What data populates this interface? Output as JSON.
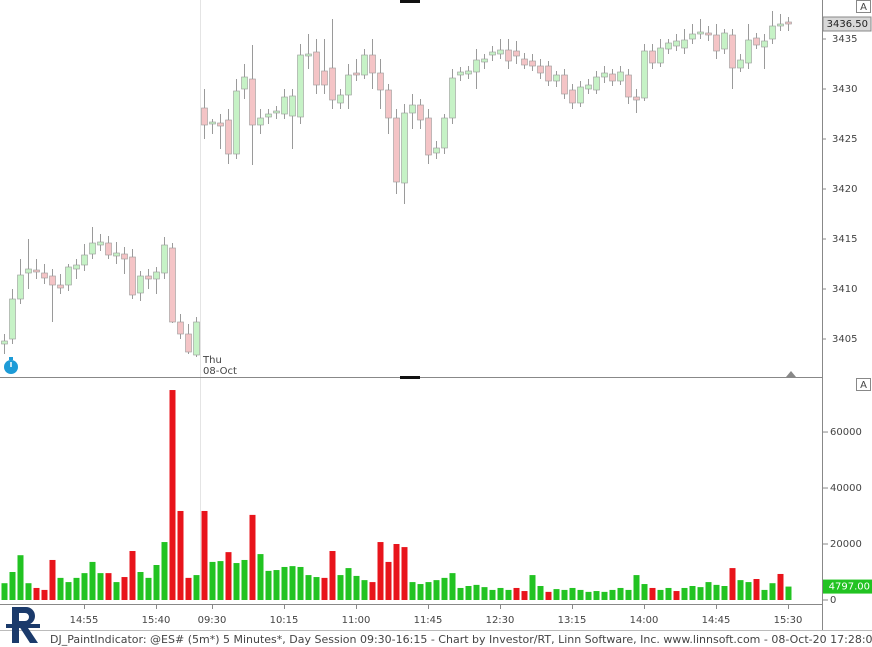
{
  "chart_data": [
    {
      "type": "candlestick",
      "open": [
        3404.5,
        3405,
        3409,
        3411.6,
        3411.9,
        3411.6,
        3411.3,
        3410.4,
        3410.4,
        3412,
        3412.4,
        3413.5,
        3414.4,
        3414.6,
        3413.3,
        3413.5,
        3413.2,
        3409.6,
        3411.3,
        3411,
        3411.6,
        3414.1,
        3406.7,
        3405.5,
        3403.4,
        3428.1,
        3426.5,
        3426.6,
        3426.9,
        3423.5,
        3430,
        3431,
        3426.4,
        3427.2,
        3427.6,
        3427.5,
        3427.3,
        3427.2,
        3433.3,
        3433.7,
        3431.8,
        3432.1,
        3428.6,
        3429.4,
        3431.6,
        3431.4,
        3433.4,
        3431.6,
        3429.9,
        3427.1,
        3420.6,
        3427.6,
        3428.4,
        3427.1,
        3423.6,
        3424.1,
        3427.1,
        3431.4,
        3431.5,
        3431.7,
        3432.7,
        3433.4,
        3433.5,
        3433.9,
        3433.8,
        3433,
        3432.8,
        3432.3,
        3432.3,
        3430.8,
        3431.4,
        3429.9,
        3428.6,
        3430,
        3429.9,
        3431.2,
        3431.5,
        3430.8,
        3431.4,
        3429.2,
        3429.1,
        3433.8,
        3432.6,
        3434,
        3434.3,
        3434.1,
        3435,
        3435.5,
        3435.6,
        3435.4,
        3434,
        3435.4,
        3432.1,
        3432.6,
        3435.1,
        3434.2,
        3435,
        3436.3,
        3436.7
      ],
      "high": [
        3405.5,
        3410,
        3413,
        3415,
        3413,
        3412.5,
        3412,
        3411.5,
        3412.5,
        3413,
        3414.5,
        3416.2,
        3415.5,
        3415.3,
        3414.7,
        3414.2,
        3414,
        3411.8,
        3412,
        3412.2,
        3415.2,
        3414.6,
        3407.5,
        3406.5,
        3407.2,
        3430,
        3427,
        3427.5,
        3428,
        3431,
        3432.5,
        3434.4,
        3428,
        3428,
        3428.3,
        3430,
        3430,
        3434.5,
        3435.5,
        3435,
        3435,
        3437,
        3430,
        3432.5,
        3433,
        3434,
        3435,
        3433,
        3430.5,
        3428,
        3428.5,
        3429.5,
        3429,
        3428,
        3424.8,
        3427.5,
        3432,
        3432.2,
        3432.3,
        3434,
        3433.5,
        3434.3,
        3435,
        3435,
        3434.8,
        3433.6,
        3433.5,
        3433,
        3432.8,
        3431.8,
        3432,
        3430.5,
        3430.8,
        3431,
        3431.8,
        3432.3,
        3432,
        3432.3,
        3432,
        3430,
        3434.5,
        3434.5,
        3435,
        3435,
        3435.5,
        3436,
        3436.5,
        3437,
        3436.3,
        3436.5,
        3436,
        3436,
        3433.5,
        3436.5,
        3435.6,
        3435.5,
        3437.8,
        3437.5,
        3437.2
      ],
      "low": [
        3403.5,
        3404.5,
        3408.5,
        3410,
        3411,
        3410.5,
        3406.7,
        3409.5,
        3409.8,
        3411,
        3411.8,
        3413,
        3413.8,
        3413,
        3412.5,
        3411.5,
        3409,
        3408.8,
        3410,
        3409.5,
        3411,
        3406.6,
        3405,
        3403.5,
        3403.2,
        3425,
        3425.5,
        3424,
        3422.5,
        3423,
        3429,
        3422.4,
        3425.5,
        3426.5,
        3427,
        3427,
        3424,
        3426.5,
        3432,
        3429.5,
        3429.5,
        3428,
        3428,
        3428,
        3430.8,
        3431,
        3430,
        3428,
        3425.5,
        3419.5,
        3418.5,
        3426,
        3426,
        3422.5,
        3423,
        3423.5,
        3426.5,
        3430.8,
        3431,
        3430,
        3432,
        3432.8,
        3433,
        3432,
        3432.5,
        3432,
        3431.8,
        3431,
        3430.3,
        3430.2,
        3429,
        3428,
        3428.2,
        3429.5,
        3429.5,
        3430.6,
        3430.3,
        3430.4,
        3428.5,
        3427.6,
        3428.8,
        3432,
        3432.2,
        3433.5,
        3433.8,
        3433.5,
        3434.5,
        3435,
        3434.8,
        3433,
        3433.5,
        3430,
        3431.7,
        3432,
        3434,
        3432,
        3434.5,
        3435.8,
        3435.8
      ],
      "close": [
        3404.8,
        3409,
        3411.4,
        3412,
        3411.7,
        3411.1,
        3410.4,
        3410.1,
        3412.2,
        3412.4,
        3413.4,
        3414.6,
        3414.7,
        3413.4,
        3413.6,
        3413,
        3409.4,
        3411.3,
        3411,
        3411.7,
        3414.4,
        3406.7,
        3405.5,
        3403.7,
        3406.7,
        3426.4,
        3426.7,
        3426.3,
        3423.5,
        3429.8,
        3431.2,
        3426.4,
        3427.1,
        3427.5,
        3427.8,
        3429.2,
        3429.3,
        3433.4,
        3433.5,
        3430.4,
        3430.4,
        3428.9,
        3429.4,
        3431.4,
        3431.4,
        3433.4,
        3431.6,
        3429.9,
        3427.1,
        3420.7,
        3427.6,
        3428.4,
        3426.9,
        3423.4,
        3424.1,
        3427.1,
        3431.1,
        3431.7,
        3431.8,
        3432.9,
        3433,
        3433.7,
        3433.9,
        3432.8,
        3433.3,
        3432.4,
        3432.3,
        3431.6,
        3430.8,
        3431.4,
        3429.5,
        3428.6,
        3430.2,
        3430.4,
        3431.2,
        3431.6,
        3430.8,
        3431.7,
        3429.2,
        3428.9,
        3433.8,
        3432.6,
        3434.1,
        3434.6,
        3434.8,
        3434.9,
        3435.5,
        3435.7,
        3435.4,
        3433.8,
        3435.6,
        3432.1,
        3432.9,
        3434.9,
        3434.4,
        3434.8,
        3436.3,
        3436.5,
        3436.5
      ],
      "up_color": "#c6f2c6",
      "down_color": "#f4c4c6",
      "ylim": [
        3401.2,
        3438.9
      ],
      "yticks": [
        3405,
        3410,
        3415,
        3420,
        3425,
        3430,
        3435
      ],
      "price_tag": {
        "value": 3436.5,
        "label": "3436.50"
      },
      "session_label": [
        "Thu",
        "08-Oct"
      ],
      "axis_badge": "A"
    },
    {
      "type": "bar",
      "categories": [
        null,
        null,
        null,
        null,
        null,
        null,
        null,
        null,
        null,
        null,
        "14:55",
        null,
        null,
        null,
        null,
        null,
        null,
        null,
        null,
        "15:40",
        null,
        null,
        null,
        null,
        null,
        null,
        "09:30",
        null,
        null,
        null,
        null,
        null,
        null,
        null,
        null,
        "10:15",
        null,
        null,
        null,
        null,
        null,
        null,
        null,
        null,
        "11:00",
        null,
        null,
        null,
        null,
        null,
        null,
        null,
        null,
        "11:45",
        null,
        null,
        null,
        null,
        null,
        null,
        null,
        null,
        "12:30",
        null,
        null,
        null,
        null,
        null,
        null,
        null,
        null,
        "13:15",
        null,
        null,
        null,
        null,
        null,
        null,
        null,
        null,
        "14:00",
        null,
        null,
        null,
        null,
        null,
        null,
        null,
        null,
        "14:45",
        null,
        null,
        null,
        null,
        null,
        null,
        null,
        null,
        "15:30"
      ],
      "values": [
        6000,
        10000,
        16000,
        6000,
        4300,
        3600,
        14300,
        7900,
        6400,
        7900,
        9600,
        13600,
        9600,
        9600,
        6400,
        8200,
        17500,
        10000,
        7900,
        12500,
        20700,
        75000,
        31800,
        7900,
        8900,
        31800,
        13600,
        13900,
        17100,
        13200,
        14300,
        30400,
        16400,
        10400,
        10700,
        11800,
        12100,
        11800,
        8900,
        8200,
        7900,
        17500,
        8900,
        11400,
        8600,
        7100,
        6400,
        20700,
        13600,
        20000,
        18900,
        6400,
        5700,
        6400,
        7100,
        7900,
        9600,
        4300,
        5000,
        5400,
        4600,
        3600,
        4300,
        3600,
        4300,
        3200,
        8900,
        5000,
        2900,
        3900,
        3600,
        4300,
        3600,
        2900,
        3200,
        2900,
        3600,
        4300,
        3600,
        8900,
        5700,
        4300,
        3600,
        4300,
        3200,
        4300,
        5000,
        4600,
        6400,
        5400,
        5000,
        11400,
        7100,
        6400,
        7500,
        3600,
        6000,
        9300,
        4797
      ],
      "colors": [
        "#22c322",
        "#22c322",
        "#22c322",
        "#22c322",
        "#e8141b",
        "#e8141b",
        "#e8141b",
        "#22c322",
        "#22c322",
        "#22c322",
        "#22c322",
        "#22c322",
        "#22c322",
        "#e8141b",
        "#22c322",
        "#e8141b",
        "#e8141b",
        "#22c322",
        "#22c322",
        "#22c322",
        "#22c322",
        "#e8141b",
        "#e8141b",
        "#e8141b",
        "#22c322",
        "#e8141b",
        "#22c322",
        "#22c322",
        "#e8141b",
        "#22c322",
        "#22c322",
        "#e8141b",
        "#22c322",
        "#22c322",
        "#22c322",
        "#22c322",
        "#22c322",
        "#22c322",
        "#22c322",
        "#22c322",
        "#e8141b",
        "#e8141b",
        "#22c322",
        "#22c322",
        "#22c322",
        "#22c322",
        "#e8141b",
        "#e8141b",
        "#e8141b",
        "#e8141b",
        "#e8141b",
        "#22c322",
        "#22c322",
        "#22c322",
        "#22c322",
        "#22c322",
        "#22c322",
        "#22c322",
        "#22c322",
        "#22c322",
        "#22c322",
        "#22c322",
        "#22c322",
        "#22c322",
        "#e8141b",
        "#e8141b",
        "#22c322",
        "#22c322",
        "#e8141b",
        "#22c322",
        "#22c322",
        "#22c322",
        "#22c322",
        "#22c322",
        "#22c322",
        "#22c322",
        "#22c322",
        "#22c322",
        "#22c322",
        "#22c322",
        "#22c322",
        "#e8141b",
        "#22c322",
        "#22c322",
        "#e8141b",
        "#22c322",
        "#22c322",
        "#22c322",
        "#22c322",
        "#22c322",
        "#22c322",
        "#e8141b",
        "#22c322",
        "#22c322",
        "#e8141b",
        "#22c322",
        "#22c322",
        "#e8141b",
        "#22c322"
      ],
      "ylim": [
        0,
        79300
      ],
      "yticks": [
        0,
        20000,
        40000,
        60000
      ],
      "value_tag": {
        "value": 4797,
        "label": "4797.00"
      },
      "axis_badge": "A"
    }
  ],
  "footer": "DJ_PaintIndicator: @ES# (5m*) 5 Minutes*, Day Session 09:30-16:15 - Chart by Investor/RT, Linn Software, Inc. www.linnsoft.com - 08-Oct-20 17:28:07"
}
